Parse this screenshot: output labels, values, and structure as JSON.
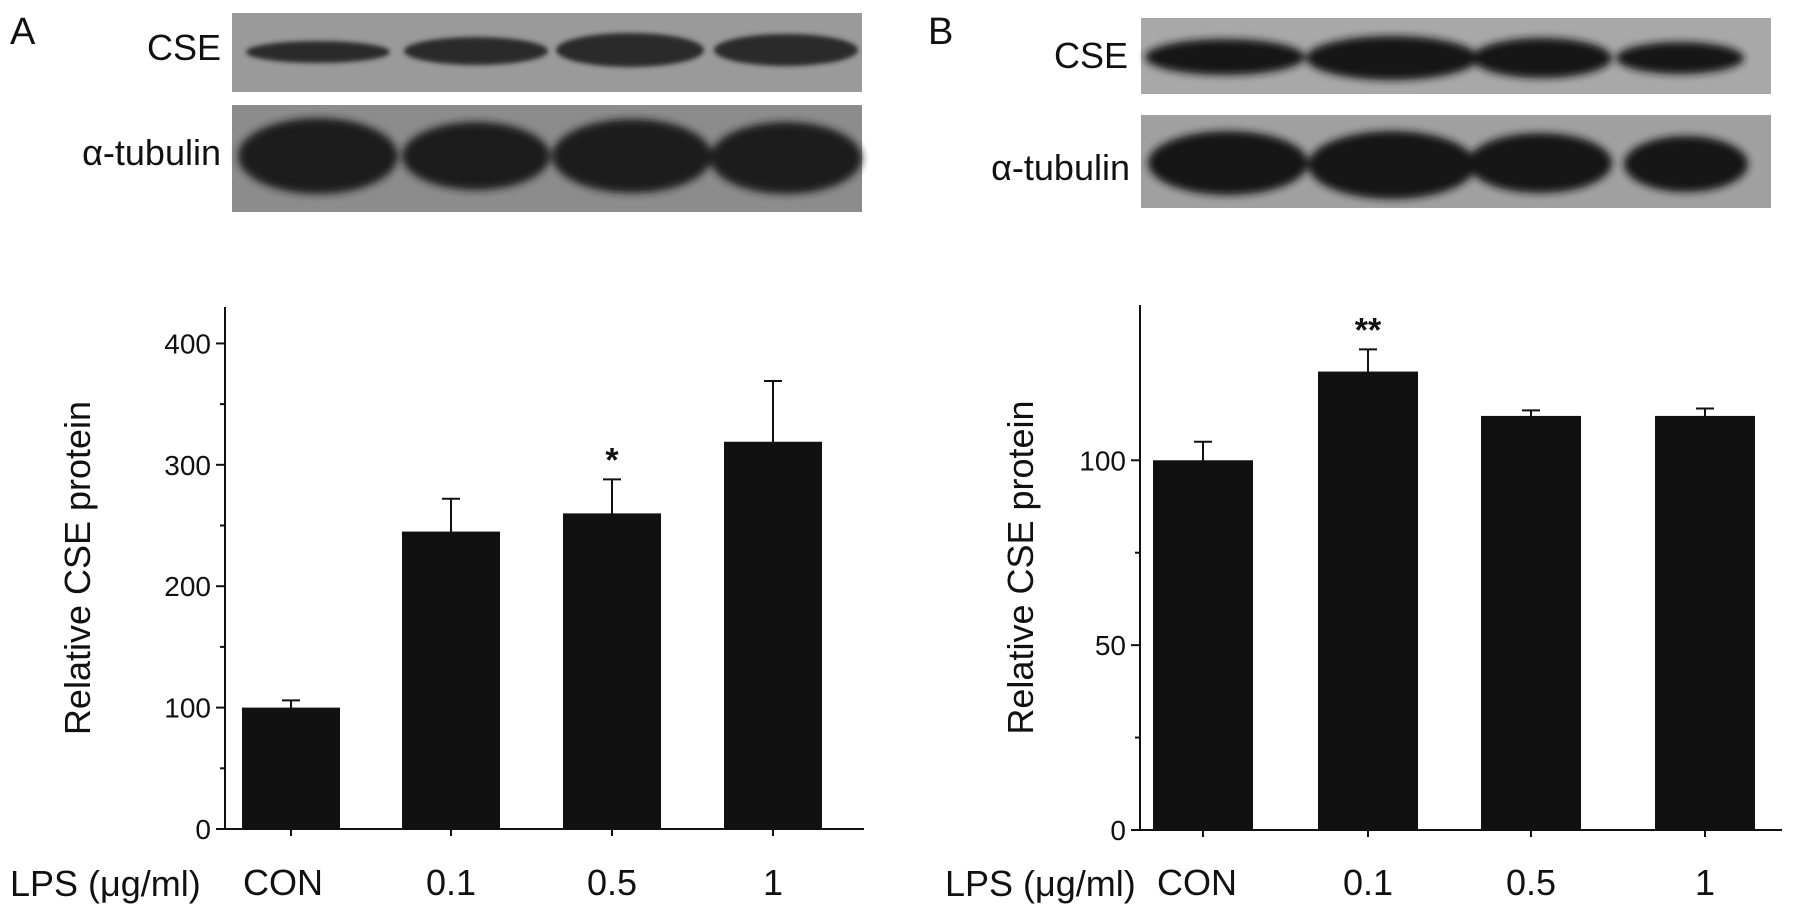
{
  "panels": [
    {
      "letter": "A",
      "blot_labels": [
        "CSE",
        "α-tubulin"
      ],
      "lps_label": "LPS (μg/ml)"
    },
    {
      "letter": "B",
      "blot_labels": [
        "CSE",
        "α-tubulin"
      ],
      "lps_label": "LPS (μg/ml)"
    }
  ],
  "chart_data": [
    {
      "type": "bar",
      "categories": [
        "CON",
        "0.1",
        "0.5",
        "1"
      ],
      "values": [
        100,
        245,
        260,
        319
      ],
      "errors": [
        6,
        27,
        28,
        50
      ],
      "significance": [
        "",
        "",
        "*",
        ""
      ],
      "ylabel": "Relative CSE protein",
      "xlabel": "LPS (μg/ml)",
      "ylim": [
        0,
        430
      ],
      "yticks": [
        0,
        100,
        200,
        300,
        400
      ],
      "bar_color": "#111111"
    },
    {
      "type": "bar",
      "categories": [
        "CON",
        "0.1",
        "0.5",
        "1"
      ],
      "values": [
        100,
        124,
        112,
        112
      ],
      "errors": [
        5,
        6,
        1.5,
        2
      ],
      "significance": [
        "",
        "**",
        "",
        ""
      ],
      "ylabel": "Relative CSE protein",
      "xlabel": "LPS (μg/ml)",
      "ylim": [
        0,
        142
      ],
      "yticks": [
        0,
        50,
        100
      ],
      "bar_color": "#111111"
    }
  ]
}
